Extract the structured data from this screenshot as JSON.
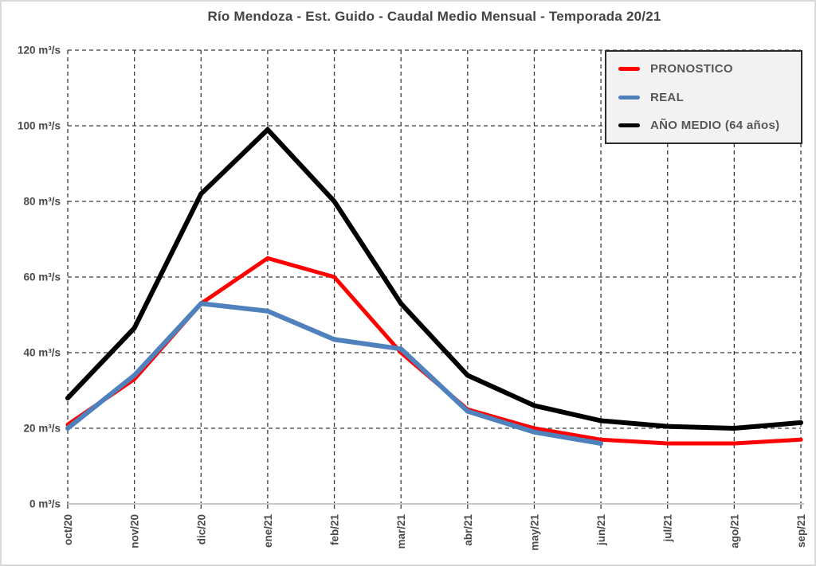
{
  "chart_data": {
    "type": "line",
    "title": "Río Mendoza - Est. Guido - Caudal Medio Mensual - Temporada 20/21",
    "xlabel": "",
    "ylabel": "",
    "ylim": [
      0,
      120
    ],
    "grid": "dashed-horizontal-and-vertical",
    "legend_position": "top-right",
    "categories": [
      "oct/20",
      "nov/20",
      "dic/20",
      "ene/21",
      "feb/21",
      "mar/21",
      "abr/21",
      "may/21",
      "jun/21",
      "jul/21",
      "ago/21",
      "sep/21"
    ],
    "y_ticks": [
      {
        "value": 0,
        "label": "0 m³/s"
      },
      {
        "value": 20,
        "label": "20 m³/s"
      },
      {
        "value": 40,
        "label": "40 m³/s"
      },
      {
        "value": 60,
        "label": "60 m³/s"
      },
      {
        "value": 80,
        "label": "80 m³/s"
      },
      {
        "value": 100,
        "label": "100 m³/s"
      },
      {
        "value": 120,
        "label": "120 m³/s"
      }
    ],
    "series": [
      {
        "name": "PRONOSTICO",
        "color": "#FF0000",
        "stroke_width": 5,
        "values": [
          21,
          33,
          53,
          65,
          60,
          40,
          25,
          20,
          17,
          16,
          16,
          17
        ]
      },
      {
        "name": "REAL",
        "color": "#4F81BD",
        "stroke_width": 6,
        "values": [
          20,
          34,
          53,
          51,
          43.5,
          41,
          24.5,
          19,
          16,
          null,
          null,
          null
        ]
      },
      {
        "name": "AÑO MEDIO (64 años)",
        "color": "#000000",
        "stroke_width": 6,
        "values": [
          28,
          46.5,
          82,
          99,
          80,
          53,
          34,
          26,
          22,
          20.5,
          20,
          21.5
        ]
      }
    ]
  },
  "colors": {
    "background": "#FFFFFF",
    "frame_border": "#D9D9D9",
    "title_text": "#444444",
    "axis_text": "#4A4A4A",
    "grid": "#3A3A3A",
    "axis_line": "#C8C8C8",
    "legend_bg": "#F2F2F2",
    "legend_border": "#2B2B2B",
    "legend_text": "#575757",
    "accent_red": "#FF0000",
    "accent_blue": "#4F81BD",
    "series_black": "#000000"
  }
}
